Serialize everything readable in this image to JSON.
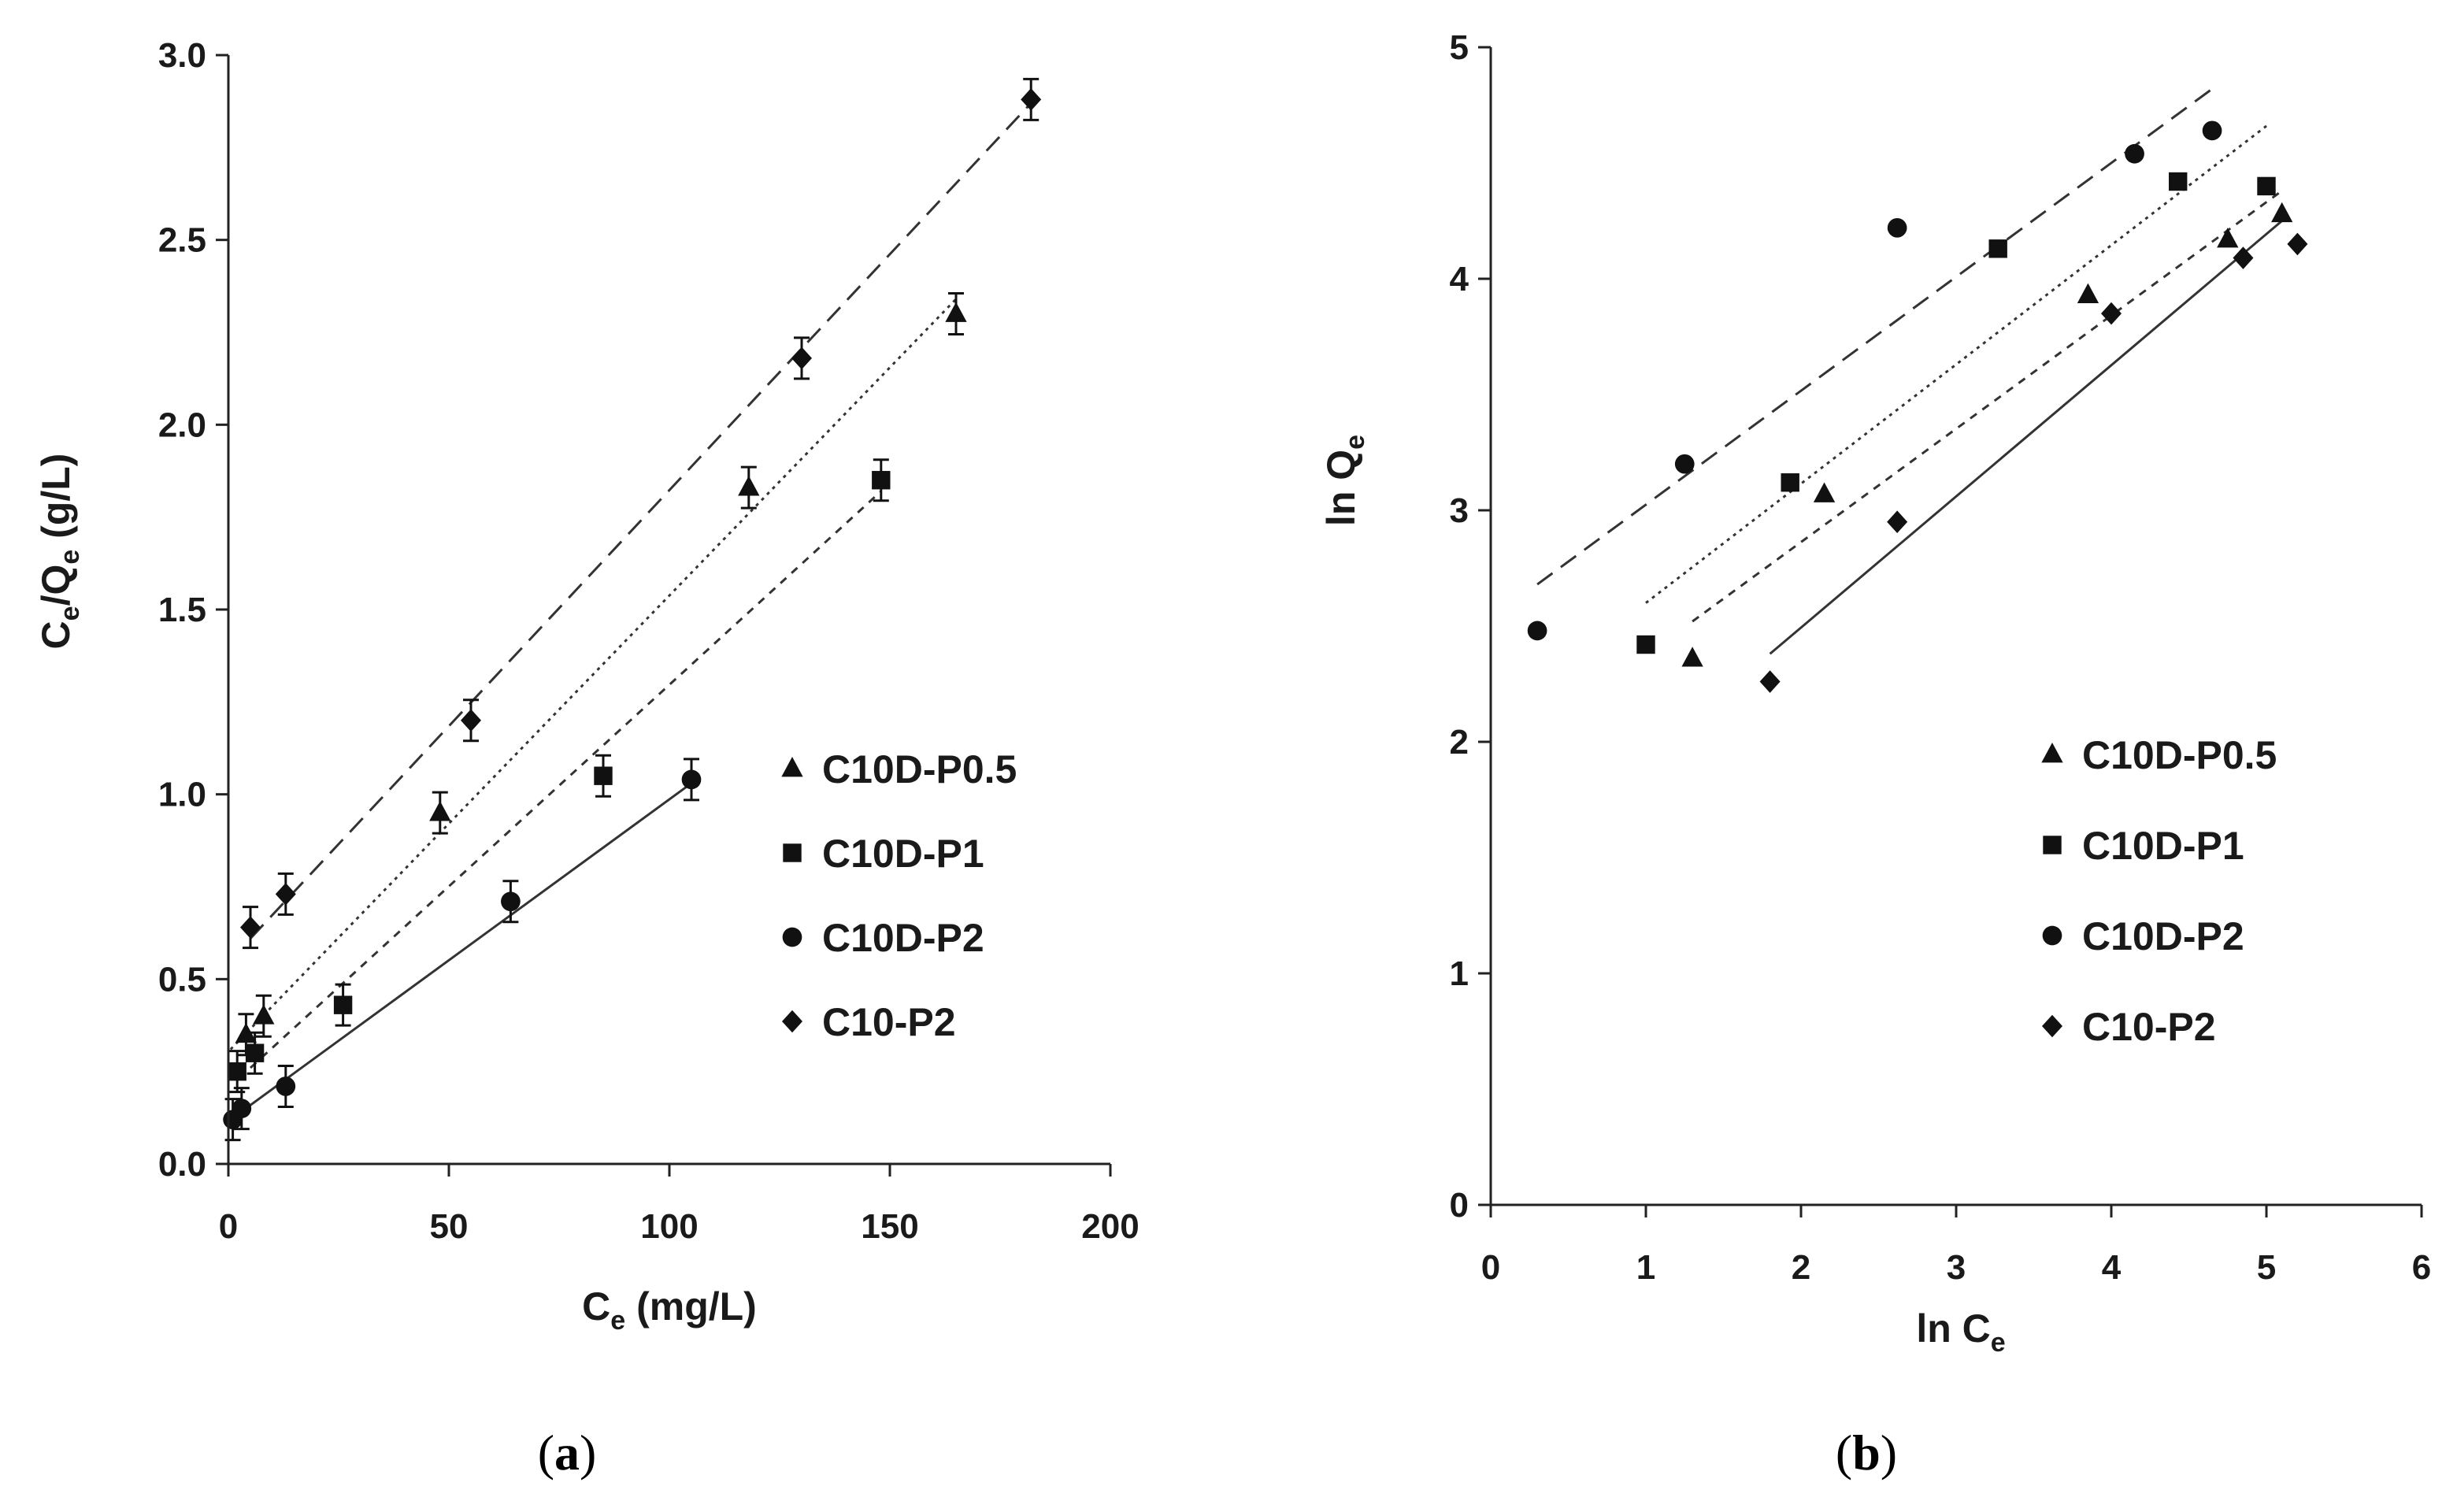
{
  "chart_data": [
    {
      "type": "scatter",
      "panel_label": "a",
      "xlabel": {
        "main": "C",
        "sub": "e",
        "rest": " (mg/L)"
      },
      "ylabel": {
        "p1": "C",
        "s1": "e",
        "p2": "/Q",
        "s2": "e",
        "p3": " (g/L)"
      },
      "xlim": [
        0,
        200
      ],
      "ylim": [
        0,
        3.0
      ],
      "xticks": [
        "0",
        "50",
        "100",
        "150",
        "200"
      ],
      "yticks": [
        "0.0",
        "0.5",
        "1.0",
        "1.5",
        "2.0",
        "2.5",
        "3.0"
      ],
      "legend_position": "center-right",
      "series": [
        {
          "name": "C10D-P0.5",
          "marker": "triangle",
          "line": "dotted",
          "x": [
            4,
            8,
            48,
            118,
            165
          ],
          "y": [
            0.35,
            0.4,
            0.95,
            1.83,
            2.3
          ],
          "fit": [
            [
              0.5,
              0.31
            ],
            [
              165,
              2.34
            ]
          ]
        },
        {
          "name": "C10D-P1",
          "marker": "square",
          "line": "short-dash",
          "x": [
            2,
            6,
            26,
            85,
            148
          ],
          "y": [
            0.25,
            0.3,
            0.43,
            1.05,
            1.85
          ],
          "fit": [
            [
              5,
              0.26
            ],
            [
              148,
              1.82
            ]
          ]
        },
        {
          "name": "C10D-P2",
          "marker": "circle",
          "line": "solid",
          "x": [
            1,
            3,
            13,
            64,
            105
          ],
          "y": [
            0.12,
            0.15,
            0.21,
            0.71,
            1.04
          ],
          "fit": [
            [
              0.5,
              0.12
            ],
            [
              105,
              1.03
            ]
          ]
        },
        {
          "name": "C10-P2",
          "marker": "diamond",
          "line": "long-dash",
          "x": [
            5,
            13,
            55,
            130,
            182
          ],
          "y": [
            0.64,
            0.73,
            1.2,
            2.18,
            2.88
          ],
          "fit": [
            [
              5,
              0.61
            ],
            [
              182,
              2.87
            ]
          ]
        }
      ]
    },
    {
      "type": "scatter",
      "panel_label": "b",
      "xlabel": {
        "main": "ln C",
        "sub": "e",
        "rest": ""
      },
      "ylabel": {
        "p1": "ln Q",
        "s1": "e",
        "p2": "",
        "s2": "",
        "p3": ""
      },
      "xlim": [
        0,
        6
      ],
      "ylim": [
        0,
        5
      ],
      "xticks": [
        "0",
        "1",
        "2",
        "3",
        "4",
        "5",
        "6"
      ],
      "yticks": [
        "0",
        "1",
        "2",
        "3",
        "4",
        "5"
      ],
      "legend_position": "center-right",
      "series": [
        {
          "name": "C10D-P0.5",
          "marker": "triangle",
          "line": "short-dash",
          "x": [
            1.3,
            2.15,
            3.85,
            4.75,
            5.1
          ],
          "y": [
            2.36,
            3.07,
            3.93,
            4.17,
            4.28
          ],
          "fit": [
            [
              1.3,
              2.52
            ],
            [
              5.1,
              4.38
            ]
          ]
        },
        {
          "name": "C10D-P1",
          "marker": "square",
          "line": "dotted",
          "x": [
            1.0,
            1.93,
            3.27,
            4.43,
            5.0
          ],
          "y": [
            2.42,
            3.12,
            4.13,
            4.42,
            4.4
          ],
          "fit": [
            [
              1.0,
              2.6
            ],
            [
              5.0,
              4.66
            ]
          ]
        },
        {
          "name": "C10D-P2",
          "marker": "circle",
          "line": "long-dash",
          "x": [
            0.3,
            1.25,
            2.62,
            4.15,
            4.65
          ],
          "y": [
            2.48,
            3.2,
            4.22,
            4.54,
            4.64
          ],
          "fit": [
            [
              0.3,
              2.68
            ],
            [
              4.65,
              4.82
            ]
          ]
        },
        {
          "name": "C10-P2",
          "marker": "diamond",
          "line": "solid",
          "x": [
            1.8,
            2.62,
            4.0,
            4.85,
            5.2
          ],
          "y": [
            2.26,
            2.95,
            3.85,
            4.09,
            4.15
          ],
          "fit": [
            [
              1.8,
              2.38
            ],
            [
              5.1,
              4.25
            ]
          ]
        }
      ]
    }
  ]
}
